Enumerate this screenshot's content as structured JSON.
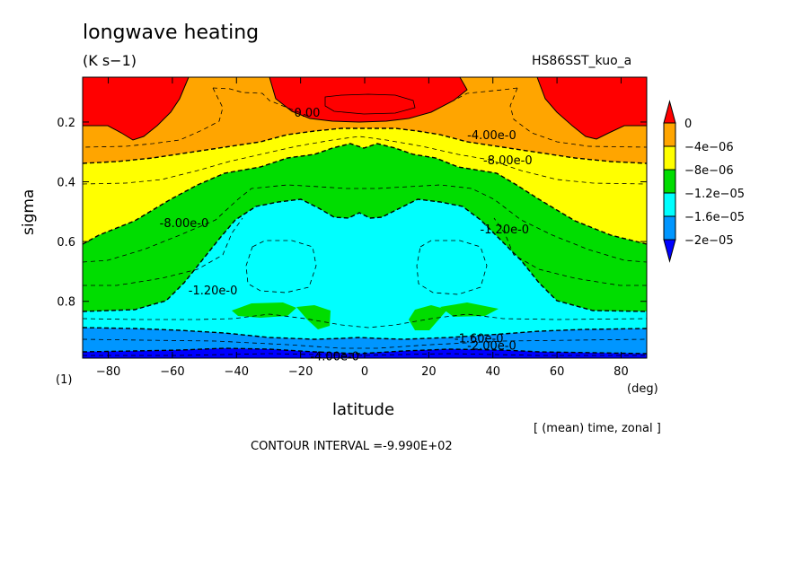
{
  "header": {
    "title": "longwave heating",
    "units": "(K s−1)",
    "run_name": "HS86SST_kuo_a"
  },
  "footer": {
    "index_label": "(1)",
    "x_unit": "(deg)",
    "averaging": "[ (mean) time, zonal ]",
    "contour_interval": "CONTOUR INTERVAL =-9.990E+02"
  },
  "chart_data": {
    "type": "heatmap",
    "title": "longwave heating",
    "xlabel": "latitude",
    "ylabel": "sigma",
    "xlim": [
      -88,
      88
    ],
    "ylim": [
      0.05,
      0.99
    ],
    "y_inverted": true,
    "x_ticks": [
      -80,
      -60,
      -40,
      -20,
      0,
      20,
      40,
      60,
      80
    ],
    "x_tick_labels": [
      "−80",
      "−60",
      "−40",
      "−20",
      "0",
      "20",
      "40",
      "60",
      "80"
    ],
    "y_ticks": [
      0.2,
      0.4,
      0.6,
      0.8
    ],
    "y_tick_labels": [
      "0.2",
      "0.4",
      "0.6",
      "0.8"
    ],
    "colorbar": {
      "labels": [
        "0",
        "−4e−06",
        "−8e−06",
        "−1.2e−05",
        "−1.6e−05",
        "−2e−05"
      ],
      "colors": [
        "#ff0000",
        "#ffa500",
        "#ffff00",
        "#00dd00",
        "#00ffff",
        "#0096ff",
        "#0000ff"
      ]
    },
    "contour_labels": [
      {
        "text": "0.00",
        "lat": -22,
        "sigma": 0.17
      },
      {
        "text": "-4.00e-0",
        "lat": 32,
        "sigma": 0.245
      },
      {
        "text": "-8.00e-0",
        "lat": 37,
        "sigma": 0.33
      },
      {
        "text": "-8.00e-0",
        "lat": -64,
        "sigma": 0.54
      },
      {
        "text": "-1.20e-0",
        "lat": 36,
        "sigma": 0.56
      },
      {
        "text": "-1.20e-0",
        "lat": -55,
        "sigma": 0.765
      },
      {
        "text": "-1.60e-0",
        "lat": 28,
        "sigma": 0.925
      },
      {
        "text": "-2.00e-0",
        "lat": 32,
        "sigma": 0.95
      },
      {
        "text": "-4.00e-0",
        "lat": -17,
        "sigma": 0.985
      }
    ],
    "grid": false,
    "legend": "right"
  }
}
